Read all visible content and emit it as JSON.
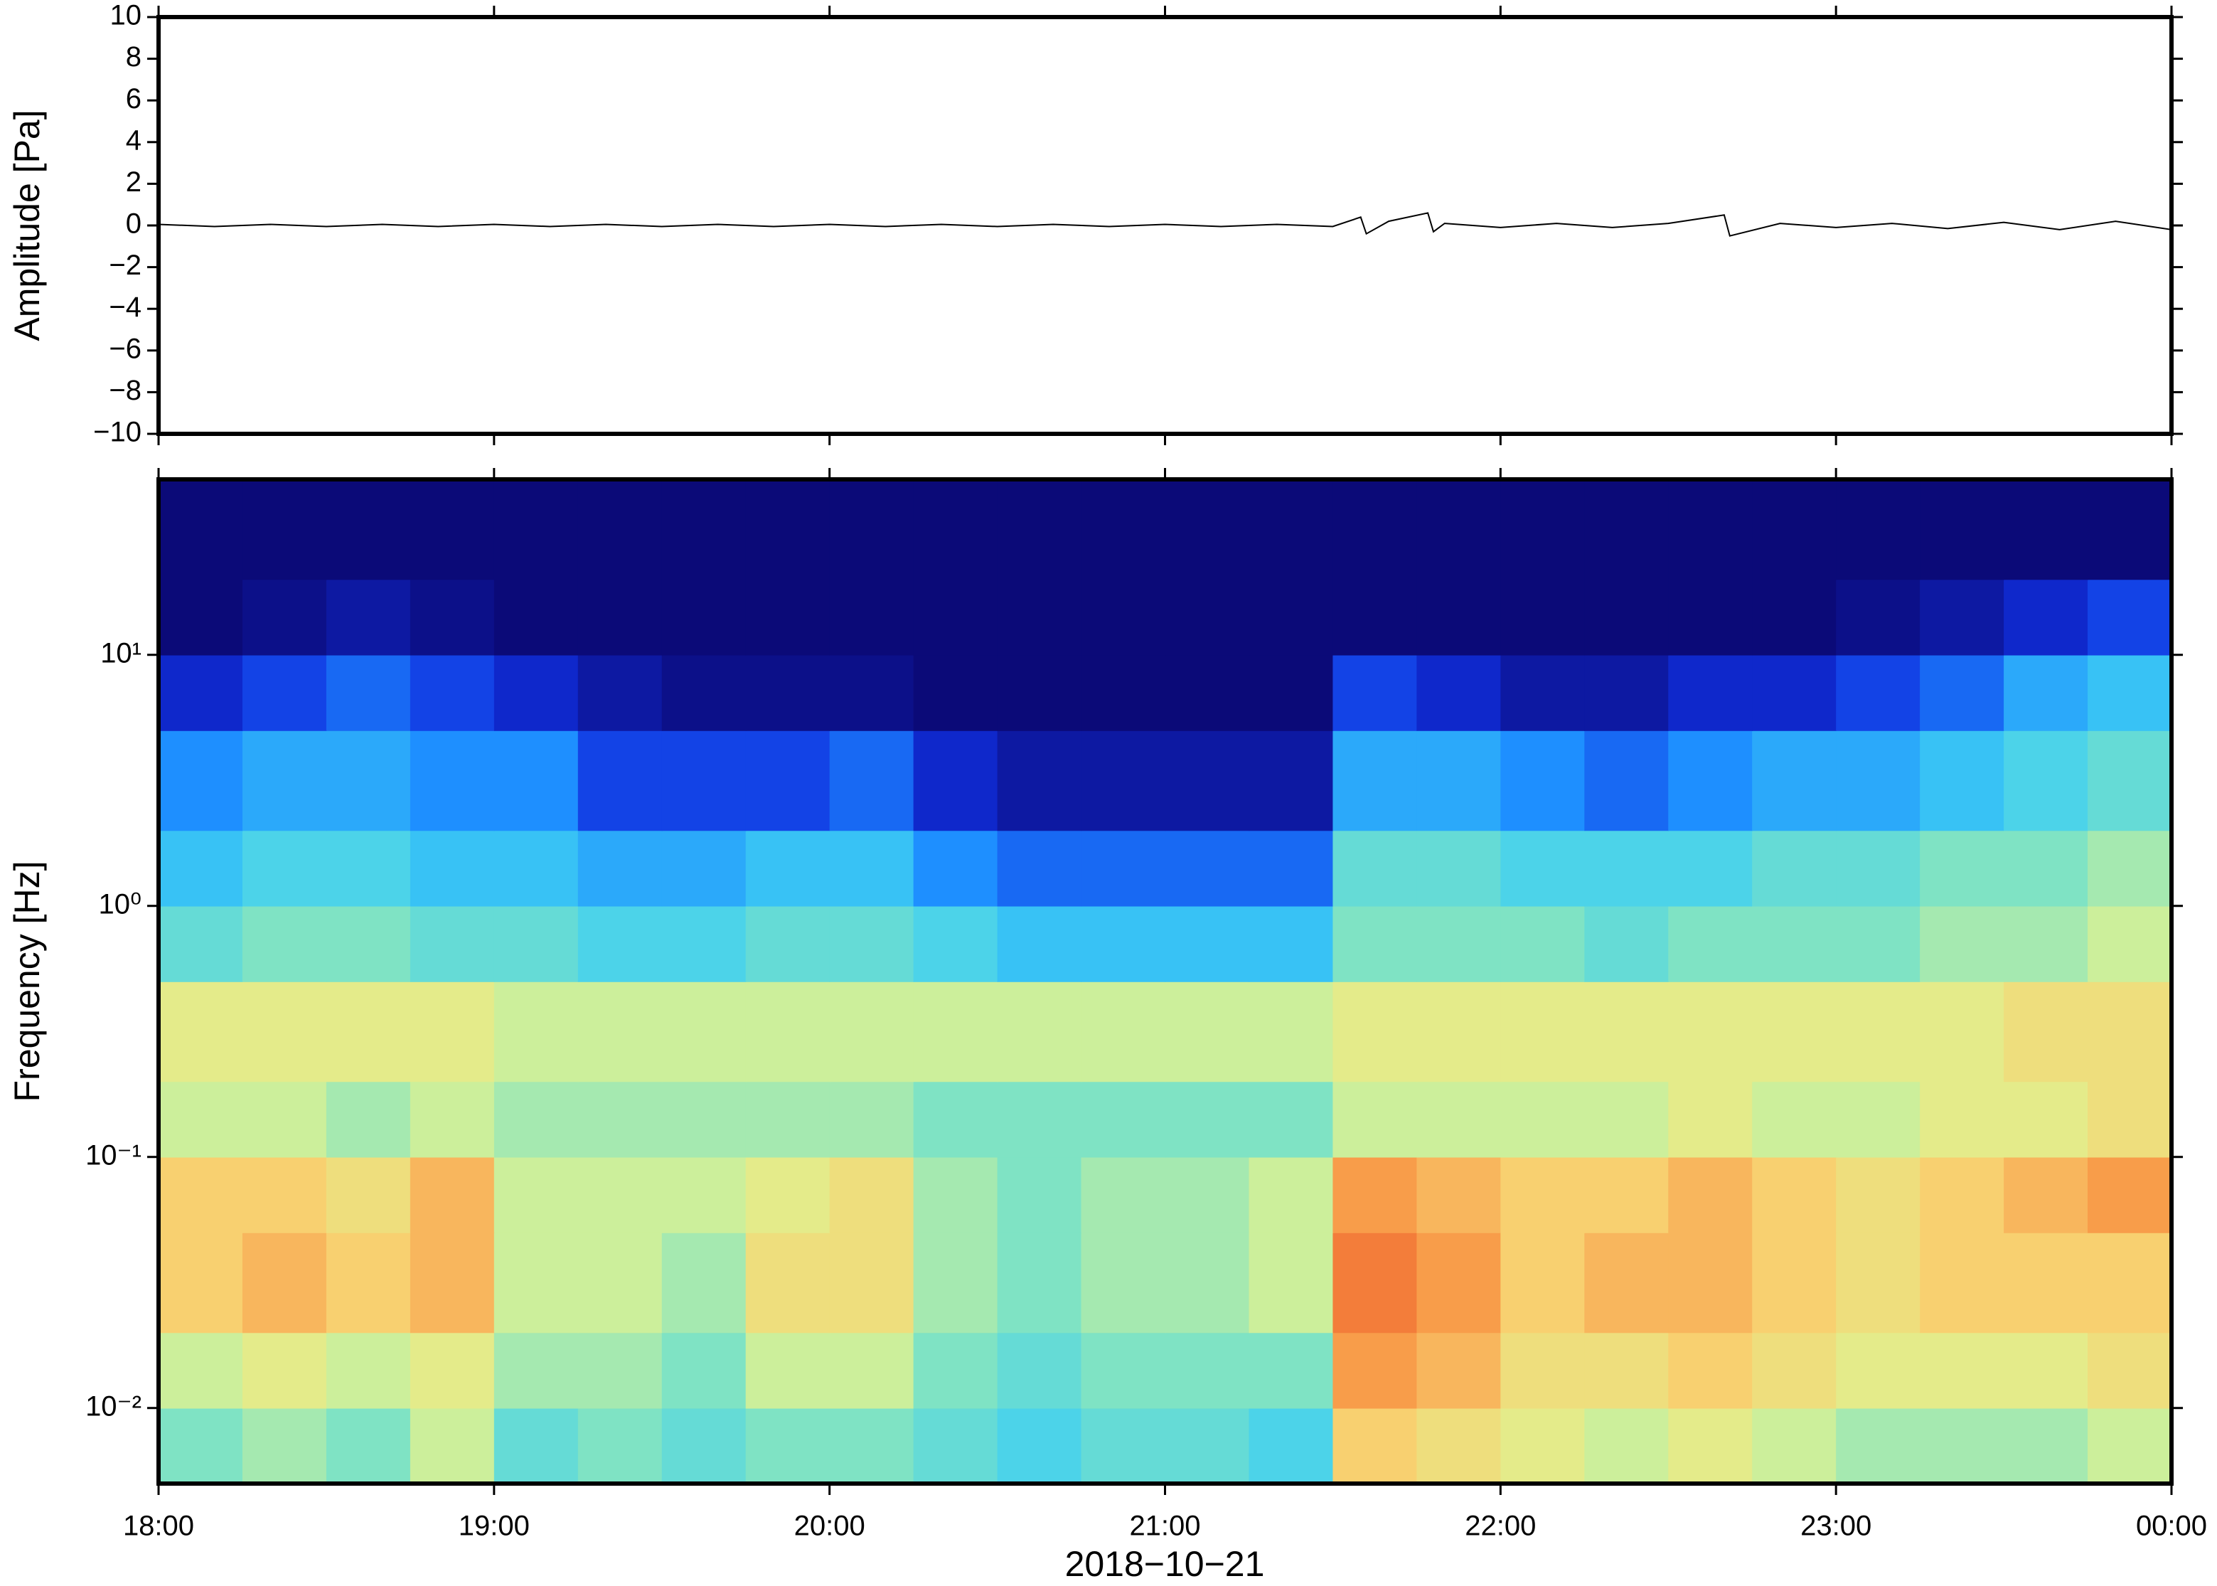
{
  "chart_data": [
    {
      "type": "line",
      "ylabel": "Amplitude [Pa]",
      "color": "#000000",
      "xlim": [
        "18:00",
        "00:00"
      ],
      "xticks": [
        "18:00",
        "19:00",
        "20:00",
        "21:00",
        "22:00",
        "23:00",
        "00:00"
      ],
      "ylim": [
        -10,
        10
      ],
      "yticks": [
        {
          "value": -10,
          "label": "−10"
        },
        {
          "value": -8,
          "label": "−8"
        },
        {
          "value": -6,
          "label": "−6"
        },
        {
          "value": -4,
          "label": "−4"
        },
        {
          "value": -2,
          "label": "−2"
        },
        0,
        2,
        4,
        6,
        8,
        10
      ],
      "x": [
        "18:00",
        "18:10",
        "18:20",
        "18:30",
        "18:40",
        "18:50",
        "19:00",
        "19:10",
        "19:20",
        "19:30",
        "19:40",
        "19:50",
        "20:00",
        "20:10",
        "20:20",
        "20:30",
        "20:40",
        "20:50",
        "21:00",
        "21:10",
        "21:20",
        "21:30",
        "21:35",
        "21:36",
        "21:40",
        "21:47",
        "21:48",
        "21:50",
        "22:00",
        "22:10",
        "22:20",
        "22:30",
        "22:40",
        "22:41",
        "22:50",
        "23:00",
        "23:10",
        "23:20",
        "23:30",
        "23:40",
        "23:50",
        "00:00"
      ],
      "values": [
        0.05,
        -0.05,
        0.05,
        -0.05,
        0.05,
        -0.05,
        0.05,
        -0.05,
        0.05,
        -0.05,
        0.05,
        -0.05,
        0.05,
        -0.05,
        0.05,
        -0.05,
        0.05,
        -0.05,
        0.05,
        -0.05,
        0.05,
        -0.05,
        0.4,
        -0.4,
        0.2,
        0.6,
        -0.3,
        0.1,
        -0.1,
        0.1,
        -0.1,
        0.1,
        0.5,
        -0.5,
        0.1,
        -0.1,
        0.1,
        -0.15,
        0.15,
        -0.2,
        0.2,
        -0.2
      ]
    },
    {
      "type": "heatmap",
      "ylabel": "Frequency [Hz]",
      "xlabel": "2018−10−21",
      "log_y": true,
      "xlim": [
        "18:00",
        "00:00"
      ],
      "xticks": [
        "18:00",
        "19:00",
        "20:00",
        "21:00",
        "22:00",
        "23:00",
        "00:00"
      ],
      "ylim": [
        0.005,
        50
      ],
      "yticks": [
        {
          "value": 0.01,
          "label": "10⁻²"
        },
        {
          "value": 0.1,
          "label": "10⁻¹"
        },
        {
          "value": 1,
          "label": "10⁰"
        },
        {
          "value": 10,
          "label": "10¹"
        }
      ],
      "colormap": [
        "#0b0a78",
        "#1030e0",
        "#1e8fff",
        "#3fcff2",
        "#7fe3c4",
        "#dff291",
        "#f8d070",
        "#f89040",
        "#e03020"
      ],
      "x_bins": [
        "18:00",
        "18:15",
        "18:30",
        "18:45",
        "19:00",
        "19:15",
        "19:30",
        "19:45",
        "20:00",
        "20:15",
        "20:30",
        "20:45",
        "21:00",
        "21:15",
        "21:30",
        "21:45",
        "22:00",
        "22:15",
        "22:30",
        "22:45",
        "23:00",
        "23:15",
        "23:30",
        "23:45",
        "00:00"
      ],
      "y_bins": [
        0.005,
        0.01,
        0.02,
        0.05,
        0.1,
        0.2,
        0.5,
        1,
        2,
        5,
        10,
        20,
        50
      ],
      "values": [
        [
          0.5,
          0.55,
          0.5,
          0.6,
          0.45,
          0.5,
          0.45,
          0.5,
          0.5,
          0.45,
          0.4,
          0.45,
          0.45,
          0.4,
          0.75,
          0.7,
          0.65,
          0.6,
          0.65,
          0.6,
          0.55,
          0.55,
          0.55,
          0.6
        ],
        [
          0.6,
          0.65,
          0.6,
          0.65,
          0.55,
          0.55,
          0.5,
          0.6,
          0.6,
          0.5,
          0.45,
          0.5,
          0.5,
          0.5,
          0.85,
          0.8,
          0.7,
          0.7,
          0.75,
          0.7,
          0.65,
          0.65,
          0.65,
          0.7
        ],
        [
          0.75,
          0.8,
          0.75,
          0.8,
          0.6,
          0.6,
          0.55,
          0.7,
          0.7,
          0.55,
          0.5,
          0.55,
          0.55,
          0.6,
          0.9,
          0.85,
          0.75,
          0.8,
          0.8,
          0.75,
          0.7,
          0.75,
          0.75,
          0.75
        ],
        [
          0.75,
          0.75,
          0.7,
          0.8,
          0.6,
          0.6,
          0.6,
          0.65,
          0.7,
          0.55,
          0.5,
          0.55,
          0.55,
          0.6,
          0.85,
          0.8,
          0.75,
          0.75,
          0.8,
          0.75,
          0.7,
          0.75,
          0.8,
          0.85
        ],
        [
          0.6,
          0.6,
          0.55,
          0.6,
          0.55,
          0.55,
          0.55,
          0.55,
          0.55,
          0.5,
          0.5,
          0.5,
          0.5,
          0.5,
          0.6,
          0.6,
          0.6,
          0.6,
          0.65,
          0.6,
          0.6,
          0.65,
          0.65,
          0.7
        ],
        [
          0.65,
          0.65,
          0.65,
          0.65,
          0.6,
          0.6,
          0.6,
          0.6,
          0.6,
          0.6,
          0.6,
          0.6,
          0.6,
          0.6,
          0.65,
          0.65,
          0.65,
          0.65,
          0.65,
          0.65,
          0.65,
          0.65,
          0.7,
          0.7
        ],
        [
          0.45,
          0.5,
          0.5,
          0.45,
          0.45,
          0.4,
          0.4,
          0.45,
          0.45,
          0.4,
          0.35,
          0.35,
          0.35,
          0.35,
          0.5,
          0.5,
          0.5,
          0.45,
          0.5,
          0.5,
          0.5,
          0.55,
          0.55,
          0.6
        ],
        [
          0.35,
          0.4,
          0.4,
          0.35,
          0.35,
          0.3,
          0.3,
          0.35,
          0.35,
          0.25,
          0.2,
          0.2,
          0.2,
          0.2,
          0.45,
          0.45,
          0.4,
          0.4,
          0.4,
          0.45,
          0.45,
          0.5,
          0.5,
          0.55
        ],
        [
          0.25,
          0.3,
          0.3,
          0.25,
          0.25,
          0.15,
          0.15,
          0.15,
          0.2,
          0.1,
          0.05,
          0.05,
          0.05,
          0.05,
          0.3,
          0.3,
          0.25,
          0.2,
          0.25,
          0.3,
          0.3,
          0.35,
          0.4,
          0.45
        ],
        [
          0.1,
          0.15,
          0.2,
          0.15,
          0.1,
          0.05,
          0.02,
          0.02,
          0.02,
          0,
          0,
          0,
          0,
          0,
          0.15,
          0.1,
          0.05,
          0.05,
          0.1,
          0.1,
          0.15,
          0.2,
          0.3,
          0.35
        ],
        [
          0,
          0.02,
          0.05,
          0.02,
          0,
          0,
          0,
          0,
          0,
          0,
          0,
          0,
          0,
          0,
          0,
          0,
          0,
          0,
          0,
          0,
          0.02,
          0.05,
          0.1,
          0.15
        ],
        [
          0,
          0,
          0,
          0,
          0,
          0,
          0,
          0,
          0,
          0,
          0,
          0,
          0,
          0,
          0,
          0,
          0,
          0,
          0,
          0,
          0,
          0,
          0,
          0
        ]
      ]
    }
  ]
}
